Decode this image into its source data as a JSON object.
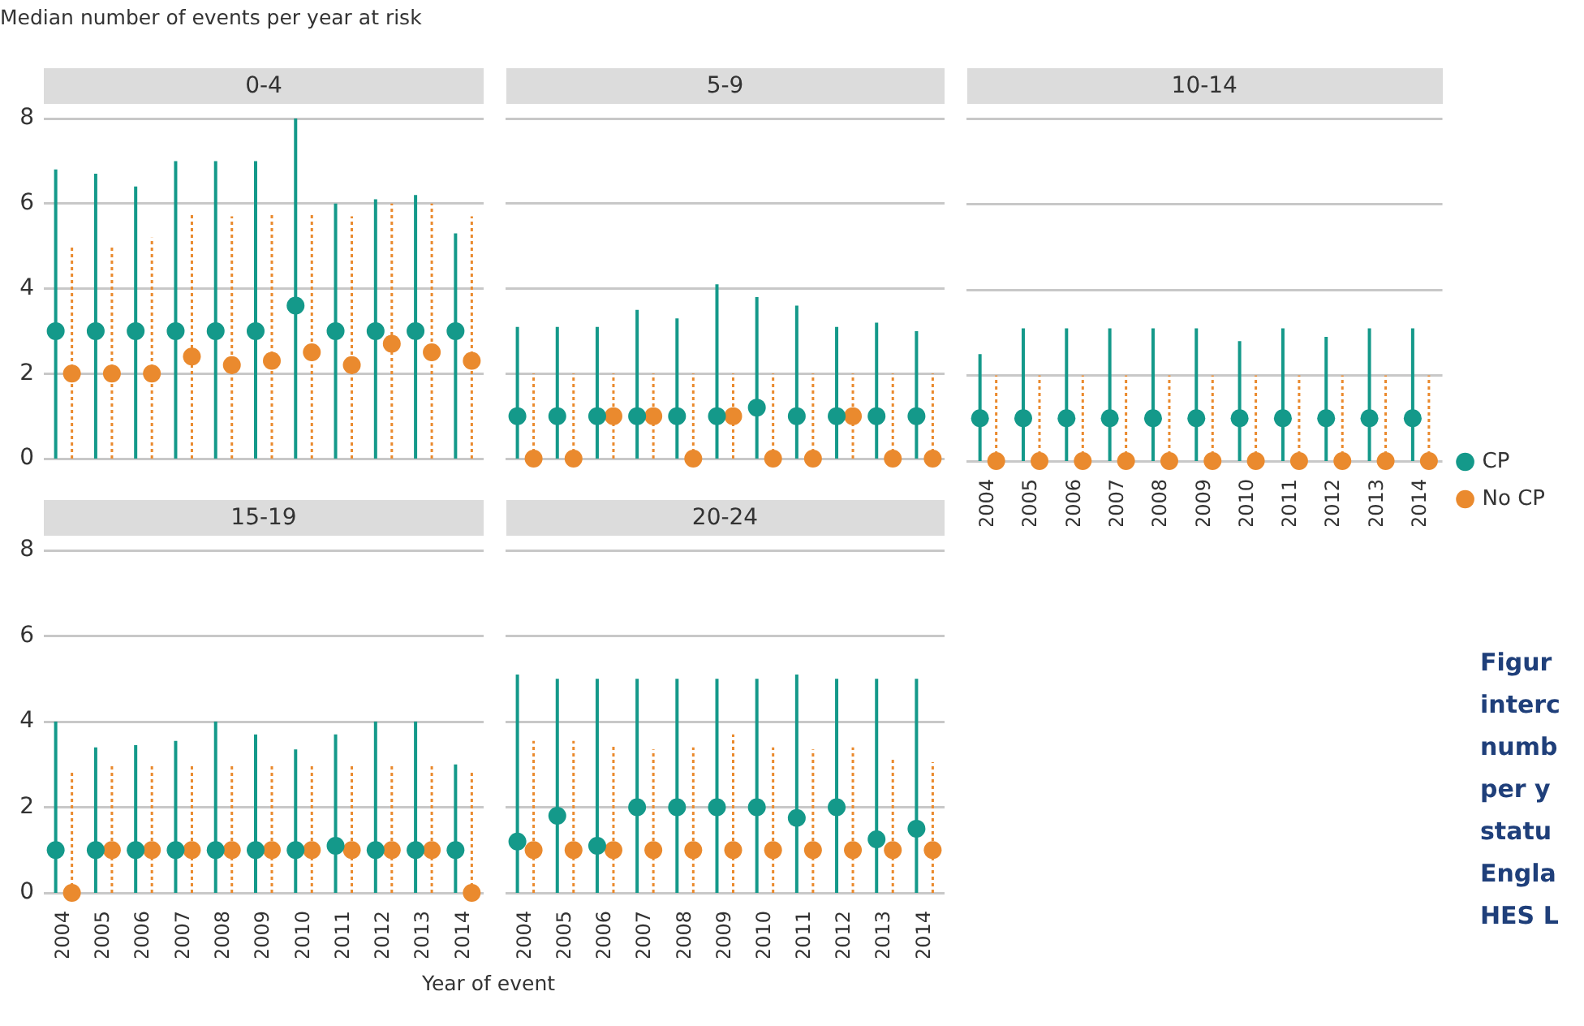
{
  "chart_data": [
    {
      "type": "scatter",
      "title": "0-4",
      "ylabel": "Median number of events per year at risk",
      "categories": [
        "2004",
        "2005",
        "2006",
        "2007",
        "2008",
        "2009",
        "2010",
        "2011",
        "2012",
        "2013",
        "2014"
      ],
      "ylim": [
        0,
        8
      ],
      "yticks": [
        0,
        2,
        4,
        6,
        8
      ],
      "grid": "y",
      "marker": "circle",
      "tick_labels": "y",
      "series": [
        {
          "color": "#14998a",
          "values": [
            3,
            3,
            3,
            3,
            3,
            3,
            3.6,
            3,
            3,
            3,
            3
          ],
          "errors": [
            [
              0,
              6.8
            ],
            [
              0,
              6.7
            ],
            [
              0,
              6.4
            ],
            [
              0,
              7
            ],
            [
              0,
              7
            ],
            [
              0,
              7
            ],
            [
              0,
              8
            ],
            [
              0,
              6
            ],
            [
              0,
              6.1
            ],
            [
              0,
              6.2
            ],
            [
              0,
              5.3
            ]
          ]
        },
        {
          "color": "#ea8a2e",
          "values": [
            2,
            2,
            2,
            2.4,
            2.2,
            2.3,
            2.5,
            2.2,
            2.7,
            2.5,
            2.3
          ],
          "errors": [
            [
              0,
              5
            ],
            [
              0,
              5
            ],
            [
              0,
              5.2
            ],
            [
              0,
              5.8
            ],
            [
              0,
              5.7
            ],
            [
              0,
              5.8
            ],
            [
              0,
              5.8
            ],
            [
              0,
              5.7
            ],
            [
              0,
              6
            ],
            [
              0,
              6
            ],
            [
              0,
              5.7
            ]
          ]
        }
      ]
    },
    {
      "type": "scatter",
      "title": "5-9",
      "categories": [
        "2004",
        "2005",
        "2006",
        "2007",
        "2008",
        "2009",
        "2010",
        "2011",
        "2012",
        "2013",
        "2014"
      ],
      "ylim": [
        0,
        8
      ],
      "yticks": [
        0,
        2,
        4,
        6,
        8
      ],
      "grid": "y",
      "marker": "circle",
      "tick_labels": false,
      "series": [
        {
          "color": "#14998a",
          "values": [
            1,
            1,
            1,
            1,
            1,
            1,
            1.2,
            1,
            1,
            1,
            1
          ],
          "errors": [
            [
              0,
              3.1
            ],
            [
              0,
              3.1
            ],
            [
              0,
              3.1
            ],
            [
              0,
              3.5
            ],
            [
              0,
              3.3
            ],
            [
              0,
              4.1
            ],
            [
              0,
              3.8
            ],
            [
              0,
              3.6
            ],
            [
              0,
              3.1
            ],
            [
              0,
              3.2
            ],
            [
              0,
              3
            ]
          ]
        },
        {
          "color": "#ea8a2e",
          "values": [
            0,
            0,
            1,
            1,
            0,
            1,
            0,
            0,
            1,
            0,
            0
          ],
          "errors": [
            [
              0,
              2
            ],
            [
              0,
              2
            ],
            [
              0,
              2
            ],
            [
              0,
              2
            ],
            [
              0,
              2
            ],
            [
              0,
              2
            ],
            [
              0,
              2
            ],
            [
              0,
              2
            ],
            [
              0,
              2
            ],
            [
              0,
              2
            ],
            [
              0,
              2
            ]
          ]
        }
      ]
    },
    {
      "type": "scatter",
      "title": "10-14",
      "categories": [
        "2004",
        "2005",
        "2006",
        "2007",
        "2008",
        "2009",
        "2010",
        "2011",
        "2012",
        "2013",
        "2014"
      ],
      "ylim": [
        0,
        8
      ],
      "yticks": [
        0,
        2,
        4,
        6,
        8
      ],
      "grid": "y",
      "marker": "circle",
      "tick_labels": "x",
      "legend": "right",
      "series": [
        {
          "name": "CP",
          "color": "#14998a",
          "values": [
            1,
            1,
            1,
            1,
            1,
            1,
            1,
            1,
            1,
            1,
            1
          ],
          "errors": [
            [
              0,
              2.5
            ],
            [
              0,
              3.1
            ],
            [
              0,
              3.1
            ],
            [
              0,
              3.1
            ],
            [
              0,
              3.1
            ],
            [
              0,
              3.1
            ],
            [
              0,
              2.8
            ],
            [
              0,
              3.1
            ],
            [
              0,
              2.9
            ],
            [
              0,
              3.1
            ],
            [
              0,
              3.1
            ]
          ]
        },
        {
          "name": "No CP",
          "color": "#ea8a2e",
          "values": [
            0,
            0,
            0,
            0,
            0,
            0,
            0,
            0,
            0,
            0,
            0
          ],
          "errors": [
            [
              0,
              2
            ],
            [
              0,
              2
            ],
            [
              0,
              2
            ],
            [
              0,
              2
            ],
            [
              0,
              2
            ],
            [
              0,
              2
            ],
            [
              0,
              2
            ],
            [
              0,
              2
            ],
            [
              0,
              2
            ],
            [
              0,
              2
            ],
            [
              0,
              2
            ]
          ]
        }
      ]
    },
    {
      "type": "scatter",
      "title": "15-19",
      "categories": [
        "2004",
        "2005",
        "2006",
        "2007",
        "2008",
        "2009",
        "2010",
        "2011",
        "2012",
        "2013",
        "2014"
      ],
      "ylim": [
        0,
        8
      ],
      "yticks": [
        0,
        2,
        4,
        6,
        8
      ],
      "grid": "y",
      "marker": "circle",
      "series": [
        {
          "color": "#14998a",
          "values": [
            1,
            1,
            1,
            1,
            1,
            1,
            1,
            1.1,
            1,
            1,
            1
          ],
          "errors": [
            [
              0,
              4
            ],
            [
              0,
              3.4
            ],
            [
              0,
              3.45
            ],
            [
              0,
              3.55
            ],
            [
              0,
              4
            ],
            [
              0,
              3.7
            ],
            [
              0,
              3.35
            ],
            [
              0,
              3.7
            ],
            [
              0,
              4
            ],
            [
              0,
              4
            ],
            [
              0,
              3
            ]
          ]
        },
        {
          "color": "#ea8a2e",
          "values": [
            0,
            1,
            1,
            1,
            1,
            1,
            1,
            1,
            1,
            1,
            0
          ],
          "errors": [
            [
              0,
              2.85
            ],
            [
              0,
              3
            ],
            [
              0,
              3
            ],
            [
              0,
              3
            ],
            [
              0,
              3
            ],
            [
              0,
              3
            ],
            [
              0,
              3
            ],
            [
              0,
              3
            ],
            [
              0,
              3
            ],
            [
              0,
              3
            ],
            [
              0,
              2.85
            ]
          ]
        }
      ]
    },
    {
      "type": "scatter",
      "title": "20-24",
      "xlabel": "Year of event",
      "categories": [
        "2004",
        "2005",
        "2006",
        "2007",
        "2008",
        "2009",
        "2010",
        "2011",
        "2012",
        "2013",
        "2014"
      ],
      "ylim": [
        0,
        8
      ],
      "yticks": [
        0,
        2,
        4,
        6,
        8
      ],
      "grid": "y",
      "marker": "circle",
      "tick_labels": "x",
      "annotations": [
        "Figur",
        "interc",
        "numb",
        "per y",
        "statu",
        "Engla",
        "HES L"
      ],
      "series": [
        {
          "color": "#14998a",
          "values": [
            1.2,
            1.8,
            1.1,
            2,
            2,
            2,
            2,
            1.75,
            2,
            1.25,
            1.5
          ],
          "errors": [
            [
              0,
              5.1
            ],
            [
              0,
              5
            ],
            [
              0,
              5
            ],
            [
              0,
              5
            ],
            [
              0,
              5
            ],
            [
              0,
              5
            ],
            [
              0,
              5
            ],
            [
              0,
              5.1
            ],
            [
              0,
              5
            ],
            [
              0,
              5
            ],
            [
              0,
              5
            ]
          ]
        },
        {
          "color": "#ea8a2e",
          "values": [
            1,
            1,
            1,
            1,
            1,
            1,
            1,
            1,
            1,
            1,
            1
          ],
          "errors": [
            [
              0,
              3.55
            ],
            [
              0,
              3.55
            ],
            [
              0,
              3.45
            ],
            [
              0,
              3.35
            ],
            [
              0,
              3.4
            ],
            [
              0,
              3.7
            ],
            [
              0,
              3.4
            ],
            [
              0,
              3.35
            ],
            [
              0,
              3.4
            ],
            [
              0,
              3.15
            ],
            [
              0,
              3.05
            ]
          ]
        }
      ]
    }
  ]
}
